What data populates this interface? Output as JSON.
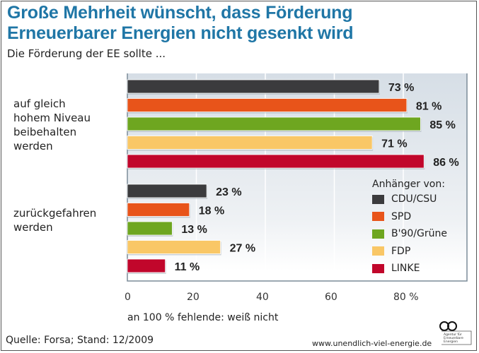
{
  "chart_data": {
    "type": "bar",
    "orientation": "horizontal",
    "title": "Große Mehrheit wünscht, dass Förderung Erneuerbarer Energien nicht gesenkt wird",
    "subtitle": "Die Förderung der EE sollte ...",
    "categories": [
      "auf gleich hohem Niveau beibehalten werden",
      "zurückgefahren werden"
    ],
    "category_lines": [
      [
        "auf gleich",
        "hohem Niveau",
        "beibehalten",
        "werden"
      ],
      [
        "zurückgefahren",
        "werden"
      ]
    ],
    "legend_title": "Anhänger von:",
    "legend_placement": "bottom-right",
    "series": [
      {
        "name": "CDU/CSU",
        "color": "#3b3b3d",
        "values": [
          73,
          23
        ]
      },
      {
        "name": "SPD",
        "color": "#e8541a",
        "values": [
          81,
          18
        ]
      },
      {
        "name": "B'90/Grüne",
        "color": "#6ea620",
        "values": [
          85,
          13
        ]
      },
      {
        "name": "FDP",
        "color": "#f9c766",
        "values": [
          71,
          27
        ]
      },
      {
        "name": "LINKE",
        "color": "#c1062b",
        "values": [
          86,
          11
        ]
      }
    ],
    "value_suffix": " %",
    "xlim": [
      0,
      98
    ],
    "xticks": [
      "0",
      "20",
      "40",
      "60",
      "80 %"
    ],
    "grid": true,
    "note": "an 100 % fehlende: weiß nicht"
  },
  "footer": {
    "source": "Quelle: Forsa; Stand: 12/2009",
    "url": "www.unendlich-viel-energie.de",
    "logo_text": [
      "Agentur für",
      "Erneuerbare",
      "Energien"
    ]
  },
  "colors": {
    "title": "#1f76a6"
  }
}
